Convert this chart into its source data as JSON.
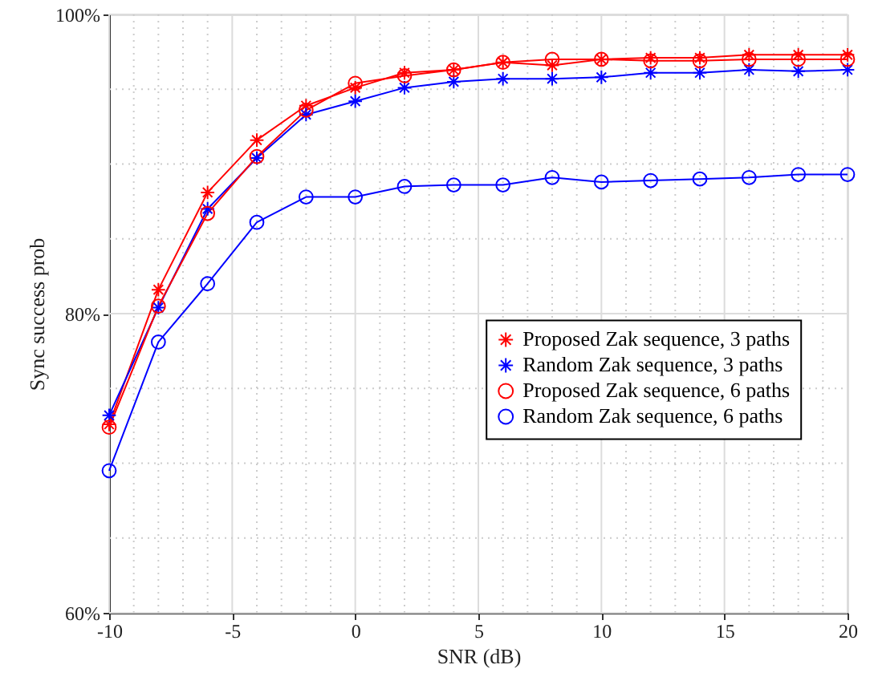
{
  "chart_data": {
    "type": "line",
    "xlabel": "SNR (dB)",
    "ylabel": "Sync success prob",
    "x": [
      -10,
      -8,
      -6,
      -4,
      -2,
      0,
      2,
      4,
      6,
      8,
      10,
      12,
      14,
      16,
      18,
      20
    ],
    "series": [
      {
        "name": "Proposed Zak sequence, 3 paths",
        "color": "#ff0000",
        "marker": "cross",
        "values": [
          72.6,
          81.6,
          88.1,
          91.6,
          93.9,
          95.1,
          96.1,
          96.3,
          96.8,
          96.6,
          97.0,
          97.1,
          97.1,
          97.3,
          97.3,
          97.3
        ]
      },
      {
        "name": "Random Zak sequence, 3 paths",
        "color": "#0000ff",
        "marker": "cross",
        "values": [
          73.2,
          80.4,
          87.0,
          90.4,
          93.3,
          94.2,
          95.1,
          95.5,
          95.7,
          95.7,
          95.8,
          96.1,
          96.1,
          96.3,
          96.2,
          96.3
        ]
      },
      {
        "name": "Proposed Zak sequence, 6 paths",
        "color": "#ff0000",
        "marker": "circle",
        "values": [
          72.4,
          80.5,
          86.7,
          90.5,
          93.6,
          95.4,
          95.9,
          96.3,
          96.8,
          97.0,
          97.0,
          96.9,
          96.9,
          97.0,
          97.0,
          97.0
        ]
      },
      {
        "name": "Random Zak sequence, 6 paths",
        "color": "#0000ff",
        "marker": "circle",
        "values": [
          69.5,
          78.1,
          82.0,
          86.1,
          87.8,
          87.8,
          88.5,
          88.6,
          88.6,
          89.1,
          88.8,
          88.9,
          89.0,
          89.1,
          89.3,
          89.3
        ]
      }
    ],
    "xlim": [
      -10,
      20
    ],
    "xticks": [
      -10,
      {
        "value": -9,
        "label": null
      },
      {
        "value": -8,
        "label": null
      },
      {
        "value": -7,
        "label": null
      },
      {
        "value": -6,
        "label": null
      },
      -5,
      {
        "value": -4,
        "label": null
      },
      {
        "value": -3,
        "label": null
      },
      {
        "value": -2,
        "label": null
      },
      {
        "value": -1,
        "label": null
      },
      0,
      {
        "value": 1,
        "label": null
      },
      {
        "value": 2,
        "label": null
      },
      {
        "value": 3,
        "label": null
      },
      {
        "value": 4,
        "label": null
      },
      5,
      {
        "value": 6,
        "label": null
      },
      {
        "value": 7,
        "label": null
      },
      {
        "value": 8,
        "label": null
      },
      {
        "value": 9,
        "label": null
      },
      10,
      {
        "value": 11,
        "label": null
      },
      {
        "value": 12,
        "label": null
      },
      {
        "value": 13,
        "label": null
      },
      {
        "value": 14,
        "label": null
      },
      15,
      {
        "value": 16,
        "label": null
      },
      {
        "value": 17,
        "label": null
      },
      {
        "value": 18,
        "label": null
      },
      {
        "value": 19,
        "label": null
      },
      20
    ],
    "ylim": [
      60,
      100
    ],
    "yticks": [
      {
        "value": 60,
        "label": "60%"
      },
      {
        "value": 65,
        "label": null
      },
      {
        "value": 70,
        "label": null
      },
      {
        "value": 75,
        "label": null
      },
      {
        "value": 80,
        "label": "80%"
      },
      {
        "value": 85,
        "label": null
      },
      {
        "value": 90,
        "label": null
      },
      {
        "value": 95,
        "label": null
      },
      {
        "value": 100,
        "label": "100%"
      }
    ],
    "grid": true,
    "legend": "right",
    "line_style": "solid"
  }
}
